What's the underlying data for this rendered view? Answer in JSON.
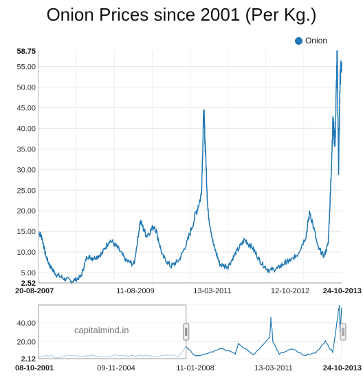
{
  "chart_data": {
    "type": "line",
    "title": "Onion Prices since 2001 (Per Kg.)",
    "legend": {
      "placement": "top-right",
      "entries": [
        "Onion"
      ]
    },
    "series": [
      {
        "name": "Onion",
        "color": "#1f77b4",
        "points": [
          [
            "2007-08-20",
            15.0
          ],
          [
            "2007-09-15",
            13.5
          ],
          [
            "2007-10-15",
            9.0
          ],
          [
            "2007-11-15",
            6.5
          ],
          [
            "2008-01-01",
            4.5
          ],
          [
            "2008-03-01",
            3.5
          ],
          [
            "2008-05-01",
            3.0
          ],
          [
            "2008-07-01",
            4.0
          ],
          [
            "2008-08-15",
            9.0
          ],
          [
            "2008-10-01",
            8.5
          ],
          [
            "2008-12-01",
            9.5
          ],
          [
            "2009-02-01",
            13.0
          ],
          [
            "2009-04-01",
            11.0
          ],
          [
            "2009-06-01",
            8.0
          ],
          [
            "2009-08-01",
            7.0
          ],
          [
            "2009-09-15",
            17.5
          ],
          [
            "2009-11-01",
            14.0
          ],
          [
            "2010-01-01",
            16.5
          ],
          [
            "2010-03-01",
            9.0
          ],
          [
            "2010-05-01",
            6.5
          ],
          [
            "2010-07-01",
            8.0
          ],
          [
            "2010-09-01",
            12.5
          ],
          [
            "2010-11-01",
            19.0
          ],
          [
            "2010-12-15",
            24.0
          ],
          [
            "2011-01-01",
            44.0
          ],
          [
            "2011-01-15",
            34.0
          ],
          [
            "2011-02-01",
            20.0
          ],
          [
            "2011-03-13",
            12.0
          ],
          [
            "2011-05-01",
            7.0
          ],
          [
            "2011-07-01",
            6.5
          ],
          [
            "2011-09-01",
            10.0
          ],
          [
            "2011-11-01",
            13.0
          ],
          [
            "2012-01-01",
            11.0
          ],
          [
            "2012-03-01",
            7.5
          ],
          [
            "2012-05-01",
            5.5
          ],
          [
            "2012-07-01",
            6.0
          ],
          [
            "2012-09-01",
            7.5
          ],
          [
            "2012-10-12",
            8.0
          ],
          [
            "2012-12-01",
            9.5
          ],
          [
            "2013-02-01",
            14.0
          ],
          [
            "2013-03-01",
            20.0
          ],
          [
            "2013-05-01",
            11.0
          ],
          [
            "2013-06-15",
            9.0
          ],
          [
            "2013-07-15",
            12.0
          ],
          [
            "2013-08-01",
            24.0
          ],
          [
            "2013-08-20",
            42.0
          ],
          [
            "2013-09-05",
            36.0
          ],
          [
            "2013-09-20",
            58.75
          ],
          [
            "2013-10-01",
            30.0
          ],
          [
            "2013-10-12",
            52.0
          ],
          [
            "2013-10-24",
            56.0
          ]
        ]
      }
    ],
    "y_axis": {
      "min_label": "2.52",
      "max_label": "58.75",
      "ticks": [
        "5.00",
        "10.00",
        "15.00",
        "20.00",
        "25.00",
        "30.00",
        "35.00",
        "40.00",
        "45.00",
        "50.00",
        "55.00"
      ]
    },
    "x_axis": {
      "start_label": "20-08-2007",
      "end_label": "24-10-2013",
      "ticks": [
        "11-08-2009",
        "13-03-2011",
        "12-10-2012"
      ]
    },
    "grid": true,
    "navigator": {
      "watermark": "capitalmind.in",
      "y_ticks": [
        "2.12",
        "20.00",
        "40.00"
      ],
      "x_start_label": "08-10-2001",
      "x_end_label": "24-10-2013",
      "x_ticks": [
        "09-11-2004",
        "11-01-2008",
        "13-03-2011"
      ],
      "selection_start": "2007-08-20",
      "selection_end": "2013-10-24",
      "series": [
        [
          "2001-10-08",
          4.0
        ],
        [
          "2002-03-01",
          5.0
        ],
        [
          "2002-08-01",
          3.5
        ],
        [
          "2003-01-01",
          6.0
        ],
        [
          "2003-06-01",
          4.5
        ],
        [
          "2003-12-01",
          5.5
        ],
        [
          "2004-06-01",
          4.0
        ],
        [
          "2004-11-09",
          6.0
        ],
        [
          "2005-05-01",
          4.5
        ],
        [
          "2005-12-01",
          5.5
        ],
        [
          "2006-06-01",
          4.0
        ],
        [
          "2006-12-01",
          6.5
        ],
        [
          "2007-05-01",
          4.5
        ],
        [
          "2007-08-20",
          15.0
        ],
        [
          "2008-01-01",
          4.5
        ],
        [
          "2008-08-15",
          9.0
        ],
        [
          "2009-02-01",
          13.0
        ],
        [
          "2009-08-01",
          7.0
        ],
        [
          "2009-09-15",
          17.5
        ],
        [
          "2010-05-01",
          6.5
        ],
        [
          "2010-12-15",
          24.0
        ],
        [
          "2011-01-01",
          44.0
        ],
        [
          "2011-02-01",
          20.0
        ],
        [
          "2011-05-01",
          7.0
        ],
        [
          "2011-11-01",
          13.0
        ],
        [
          "2012-05-01",
          5.5
        ],
        [
          "2012-10-12",
          8.0
        ],
        [
          "2013-03-01",
          20.0
        ],
        [
          "2013-06-15",
          9.0
        ],
        [
          "2013-08-20",
          42.0
        ],
        [
          "2013-09-20",
          58.75
        ],
        [
          "2013-10-01",
          30.0
        ],
        [
          "2013-10-24",
          56.0
        ]
      ]
    }
  }
}
